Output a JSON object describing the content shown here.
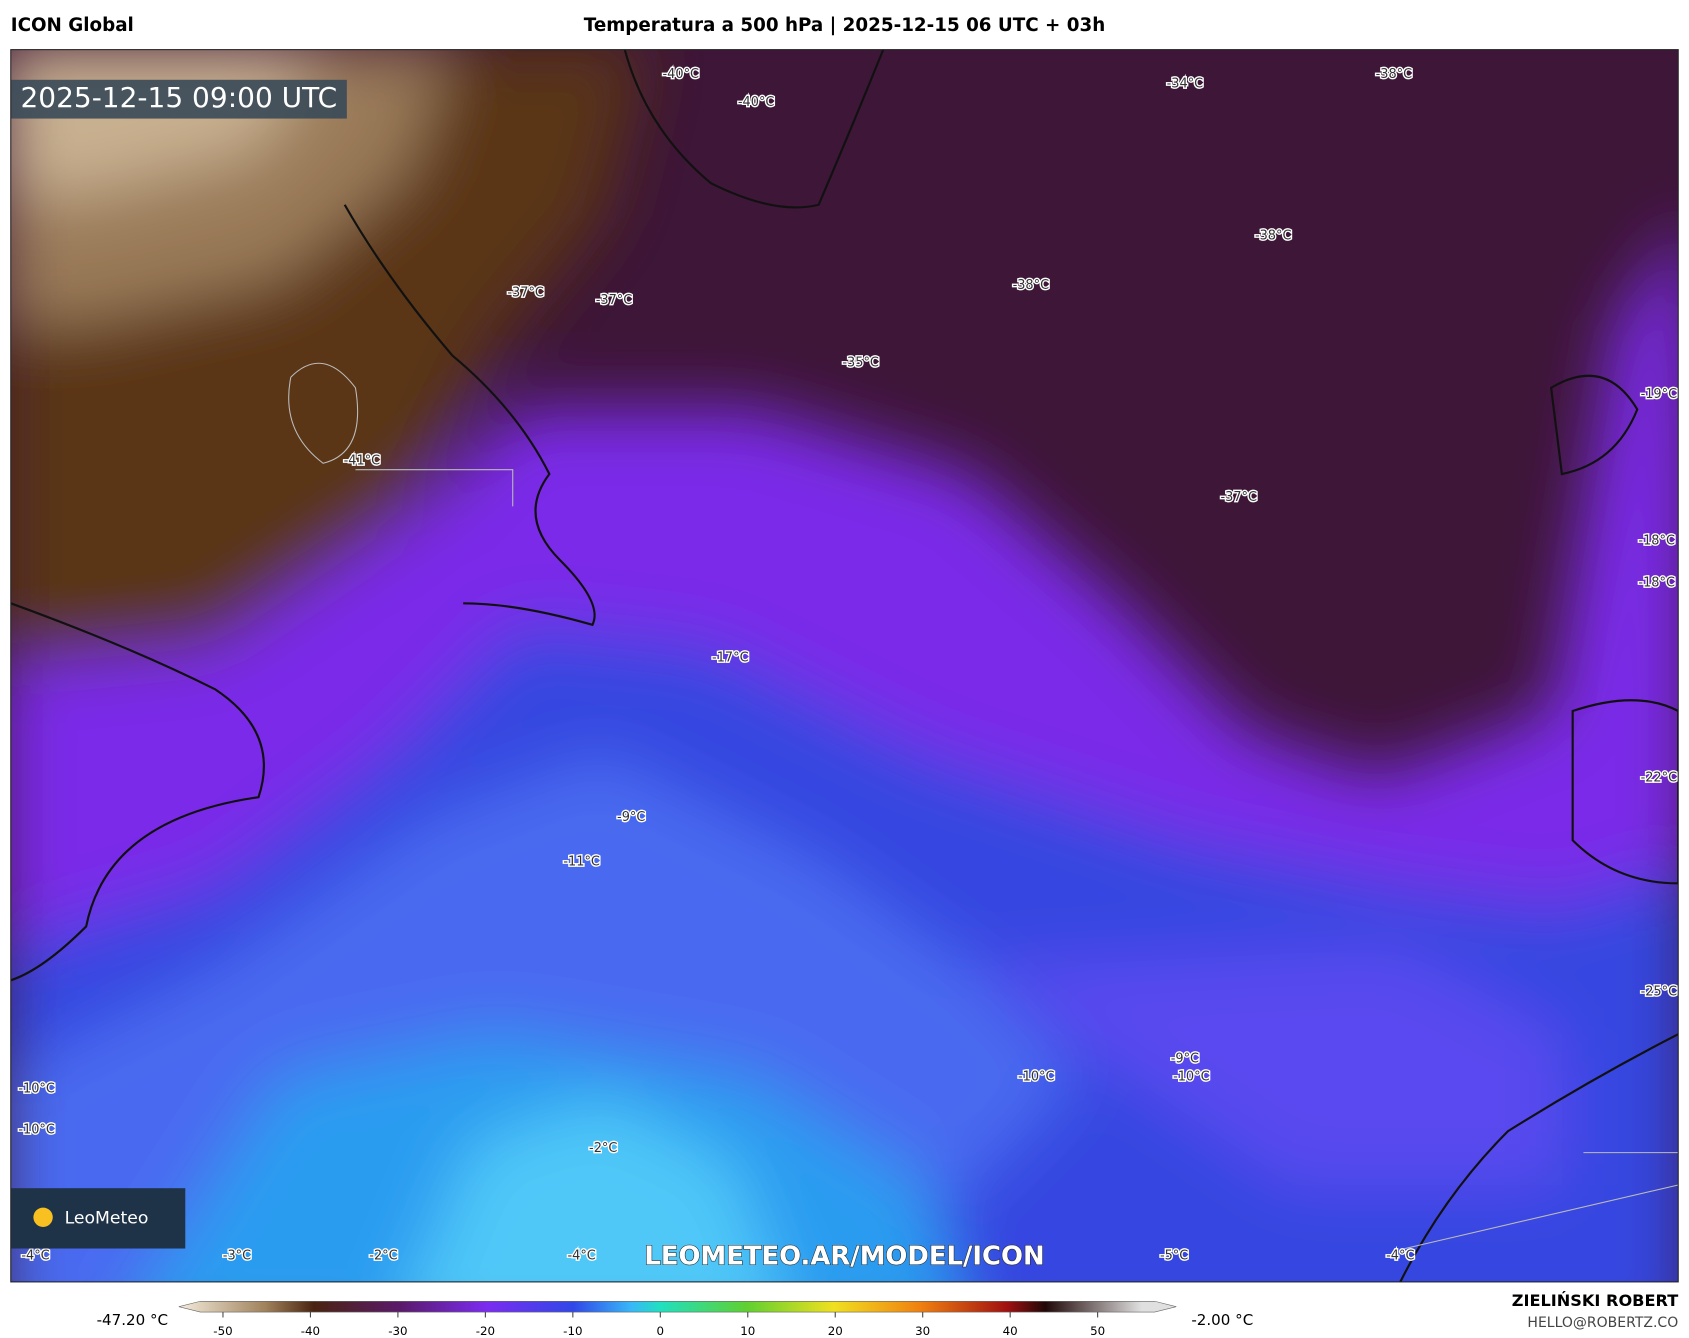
{
  "header": {
    "model": "ICON Global",
    "title": "Temperatura a 500 hPa | 2025-12-15 06 UTC + 03h"
  },
  "map": {
    "timestamp": "2025-12-15 09:00 UTC",
    "labels": [
      "-40°C",
      "-40°C",
      "-34°C",
      "-38°C",
      "-38°C",
      "-38°C",
      "-37°C",
      "-37°C",
      "-35°C",
      "-41°C",
      "-37°C",
      "-19°C",
      "-18°C",
      "-18°C",
      "-17°C",
      "-22°C",
      "-9°C",
      "-11°C",
      "-25°C",
      "-10°C",
      "-10°C",
      "-10°C",
      "-9°C",
      "-10°C",
      "-2°C",
      "-4°C",
      "-3°C",
      "-2°C",
      "-4°C",
      "-5°C",
      "-4°C"
    ],
    "watermark": "LEOMETEO.AR/MODEL/ICON",
    "logo": "LeoMeteo"
  },
  "colorbar": {
    "min_label": "-47.20 °C",
    "max_label": "-2.00 °C",
    "ticks": [
      -50,
      -40,
      -30,
      -20,
      -10,
      0,
      10,
      20,
      30,
      40,
      50
    ]
  },
  "footer": {
    "author": "ZIELIŃSKI ROBERT",
    "contact": "HELLO@ROBERTZ.CO"
  }
}
